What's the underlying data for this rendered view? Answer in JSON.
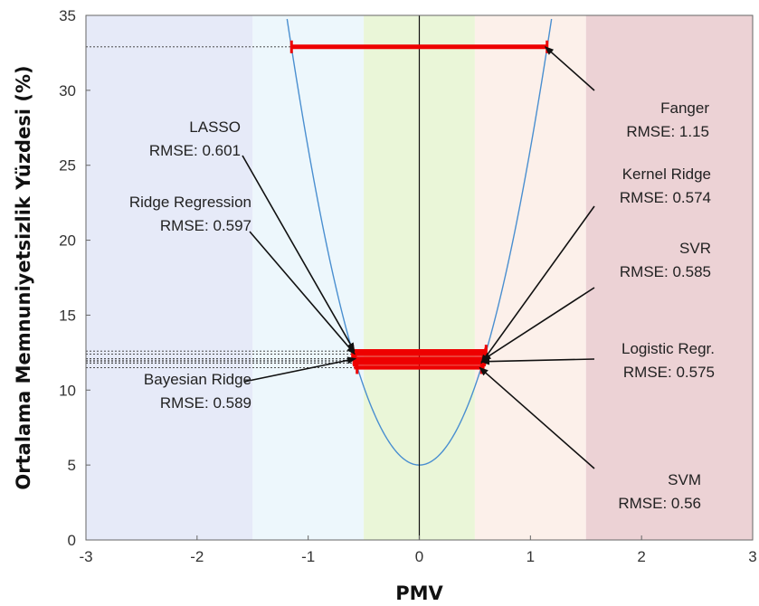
{
  "chart_data": {
    "type": "line",
    "xlabel": "PMV",
    "ylabel": "Ortalama Memnuniyetsizlik Yüzdesi (%)",
    "xlim": [
      -3,
      3
    ],
    "ylim": [
      0,
      35
    ],
    "x_ticks": [
      "-3",
      "-2",
      "-1",
      "0",
      "1",
      "2",
      "3"
    ],
    "y_ticks": [
      "0",
      "5",
      "10",
      "15",
      "20",
      "25",
      "30",
      "35"
    ],
    "grid": false,
    "curve": {
      "formula": "PPD = 100 - 95*exp(-0.03353*PMV^4 - 0.2179*PMV^2)",
      "color": "#4a8fd0"
    },
    "bands": [
      {
        "x0": -3.0,
        "x1": -1.5,
        "color": "#e6eaf8"
      },
      {
        "x0": -1.5,
        "x1": -0.5,
        "color": "#edf7fc"
      },
      {
        "x0": -0.5,
        "x1": 0.5,
        "color": "#eaf6d8"
      },
      {
        "x0": 0.5,
        "x1": 1.5,
        "color": "#fcf0ea"
      },
      {
        "x0": 1.5,
        "x1": 3.0,
        "color": "#ecd2d5"
      }
    ],
    "comfort_ranges": [
      {
        "model": "Fanger",
        "x0": -1.15,
        "x1": 1.15,
        "y": 32.9,
        "color": "#ee0000"
      },
      {
        "model": "LASSO",
        "x0": -0.601,
        "x1": 0.601,
        "y": 12.6,
        "color": "#ee0000"
      },
      {
        "model": "Ridge Regression",
        "x0": -0.597,
        "x1": 0.597,
        "y": 12.4,
        "color": "#ee0000"
      },
      {
        "model": "Bayesian Ridge",
        "x0": -0.589,
        "x1": 0.589,
        "y": 12.1,
        "color": "#ee0000"
      },
      {
        "model": "Logistic Regr.",
        "x0": -0.575,
        "x1": 0.575,
        "y": 11.9,
        "color": "#ee0000"
      },
      {
        "model": "Kernel Ridge",
        "x0": -0.574,
        "x1": 0.574,
        "y": 11.8,
        "color": "#ee0000"
      },
      {
        "model": "SVR",
        "x0": -0.585,
        "x1": 0.585,
        "y": 12.0,
        "color": "#ee0000"
      },
      {
        "model": "SVM",
        "x0": -0.56,
        "x1": 0.56,
        "y": 11.5,
        "color": "#ee0000"
      }
    ],
    "annotations": [
      {
        "name": "LASSO",
        "rmse": "RMSE: 0.601"
      },
      {
        "name": "Ridge Regression",
        "rmse": "RMSE: 0.597"
      },
      {
        "name": "Bayesian Ridge",
        "rmse": "RMSE: 0.589"
      },
      {
        "name": "Fanger",
        "rmse": "RMSE: 1.15"
      },
      {
        "name": "Kernel Ridge",
        "rmse": "RMSE: 0.574"
      },
      {
        "name": "SVR",
        "rmse": "RMSE: 0.585"
      },
      {
        "name": "Logistic Regr.",
        "rmse": "RMSE: 0.575"
      },
      {
        "name": "SVM",
        "rmse": "RMSE: 0.56"
      }
    ]
  }
}
